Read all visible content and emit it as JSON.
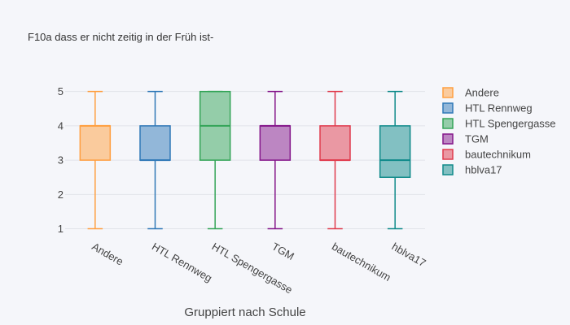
{
  "chart_data": {
    "type": "box",
    "title": "F10a dass er nicht zeitig in der Früh ist-",
    "xlabel": "Gruppiert nach Schule",
    "ylabel": "",
    "ylim": [
      0.8,
      5.3
    ],
    "yticks": [
      1,
      2,
      3,
      4,
      5
    ],
    "grid": true,
    "legend_position": "right",
    "categories": [
      "Andere",
      "HTL Rennweg",
      "HTL Spengergasse",
      "TGM",
      "bautechnikum",
      "hblva17"
    ],
    "series": [
      {
        "name": "Andere",
        "color": "#ff9f40",
        "min": 1,
        "q1": 3,
        "median": 4,
        "q3": 4,
        "max": 5
      },
      {
        "name": "HTL Rennweg",
        "color": "#2f78b7",
        "min": 1,
        "q1": 3,
        "median": 3,
        "q3": 4,
        "max": 5
      },
      {
        "name": "HTL Spengergasse",
        "color": "#33a457",
        "min": 1,
        "q1": 3,
        "median": 4,
        "q3": 5,
        "max": 5
      },
      {
        "name": "TGM",
        "color": "#84168a",
        "min": 1,
        "q1": 3,
        "median": 4,
        "q3": 4,
        "max": 5
      },
      {
        "name": "bautechnikum",
        "color": "#e03a4c",
        "min": 1,
        "q1": 3,
        "median": 3,
        "q3": 4,
        "max": 5
      },
      {
        "name": "hblva17",
        "color": "#0f8a8a",
        "min": 1,
        "q1": 2.5,
        "median": 3,
        "q3": 4,
        "max": 5
      }
    ]
  }
}
